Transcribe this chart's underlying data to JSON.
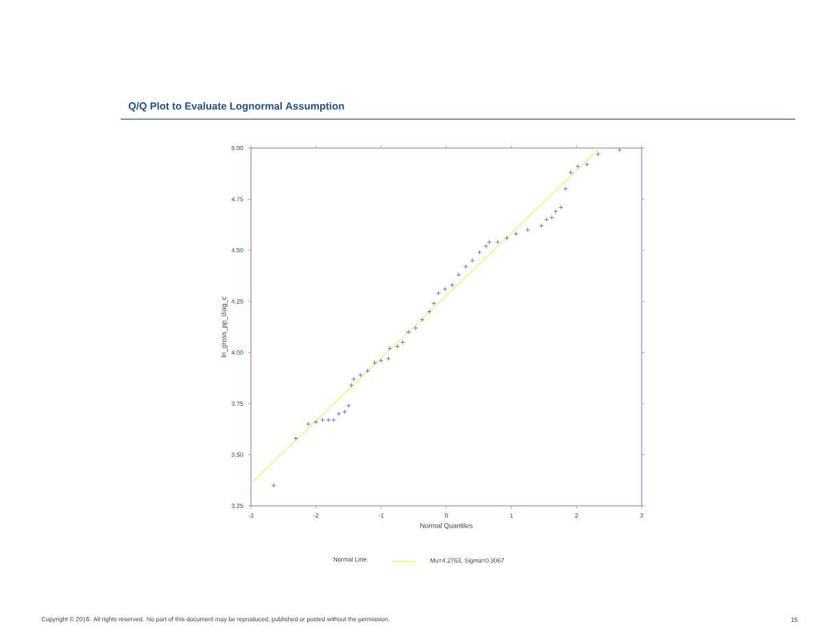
{
  "chart_data": {
    "type": "scatter",
    "title": "Q/Q Plot to Evaluate Lognormal Assumption",
    "xlabel": "Normal Quantiles",
    "ylabel": "ln_gross_pp_diag_c",
    "legend_title": "Normal Line:",
    "xlim": [
      -3,
      3
    ],
    "ylim": [
      3.25,
      5.0
    ],
    "xticks": [
      -3,
      -2,
      -1,
      0,
      1,
      2,
      3
    ],
    "yticks": [
      {
        "value": 3.25,
        "label": "3.25"
      },
      {
        "value": 3.5,
        "label": "3.50"
      },
      {
        "value": 3.75,
        "label": "3.75"
      },
      {
        "value": 4.0,
        "label": "4.00"
      },
      {
        "value": 4.25,
        "label": "4.25"
      },
      {
        "value": 4.5,
        "label": "4.50"
      },
      {
        "value": 4.75,
        "label": "4.75"
      },
      {
        "value": 5.0,
        "label": "5.00"
      }
    ],
    "marker": "cross",
    "legend": "bottom",
    "grid": false,
    "series": [
      {
        "color": "#3f4f9f",
        "x": [
          -2.65,
          -2.31,
          -2.12,
          -2.0,
          -1.9,
          -1.81,
          -1.73,
          -1.65,
          -1.56,
          -1.5,
          -1.46,
          -1.42,
          -1.32,
          -1.21,
          -1.1,
          -1.0,
          -0.89,
          -0.87,
          -0.75,
          -0.67,
          -0.58,
          -0.47,
          -0.37,
          -0.26,
          -0.19,
          -0.12,
          -0.02,
          0.09,
          0.19,
          0.3,
          0.4,
          0.51,
          0.61,
          0.66,
          0.79,
          0.93,
          1.07,
          1.25,
          1.46,
          1.54,
          1.62,
          1.68,
          1.76,
          1.83,
          1.91,
          2.02,
          2.16,
          2.33,
          2.66
        ],
        "values": [
          3.35,
          3.58,
          3.65,
          3.66,
          3.67,
          3.67,
          3.67,
          3.7,
          3.71,
          3.74,
          3.84,
          3.87,
          3.89,
          3.91,
          3.95,
          3.96,
          3.97,
          4.02,
          4.03,
          4.05,
          4.1,
          4.12,
          4.16,
          4.2,
          4.24,
          4.29,
          4.31,
          4.33,
          4.38,
          4.42,
          4.45,
          4.49,
          4.52,
          4.54,
          4.54,
          4.56,
          4.58,
          4.6,
          4.62,
          4.65,
          4.66,
          4.69,
          4.71,
          4.8,
          4.88,
          4.91,
          4.92,
          4.97,
          4.99
        ]
      },
      {
        "type": "line",
        "marker": "none",
        "name": "Mu=4.2763, Sigma=0.3067",
        "color": "#f0f060",
        "x": [
          -3,
          2.36
        ],
        "values": [
          3.36,
          5.0
        ]
      }
    ],
    "annotations": [
      "Copyright © 2016. All rights reserved. No part of this document may be reproduced, published or posted without the permission.",
      "15"
    ]
  }
}
